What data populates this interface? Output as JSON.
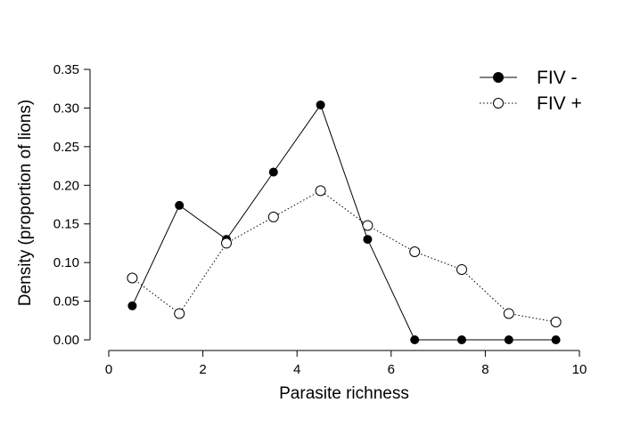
{
  "chart_data": {
    "type": "line",
    "title": "",
    "xlabel": "Parasite richness",
    "ylabel": "Density (proportion of lions)",
    "xlim": [
      0,
      10
    ],
    "ylim": [
      0,
      0.35
    ],
    "x_ticks": [
      "0",
      "2",
      "4",
      "6",
      "8",
      "10"
    ],
    "y_ticks": [
      "0.00",
      "0.05",
      "0.10",
      "0.15",
      "0.20",
      "0.25",
      "0.30",
      "0.35"
    ],
    "grid": false,
    "legend_position": "top-right",
    "x": [
      0.5,
      1.5,
      2.5,
      3.5,
      4.5,
      5.5,
      6.5,
      7.5,
      8.5,
      9.5
    ],
    "series": [
      {
        "name": "FIV -",
        "values": [
          0.044,
          0.174,
          0.13,
          0.217,
          0.304,
          0.13,
          0.0,
          0.0,
          0.0,
          0.0
        ],
        "marker": "filled-circle",
        "line_style": "solid",
        "color": "#000000"
      },
      {
        "name": "FIV +",
        "values": [
          0.08,
          0.034,
          0.125,
          0.159,
          0.193,
          0.148,
          0.114,
          0.091,
          0.034,
          0.023
        ],
        "marker": "open-circle",
        "line_style": "dotted",
        "color": "#000000"
      }
    ]
  }
}
